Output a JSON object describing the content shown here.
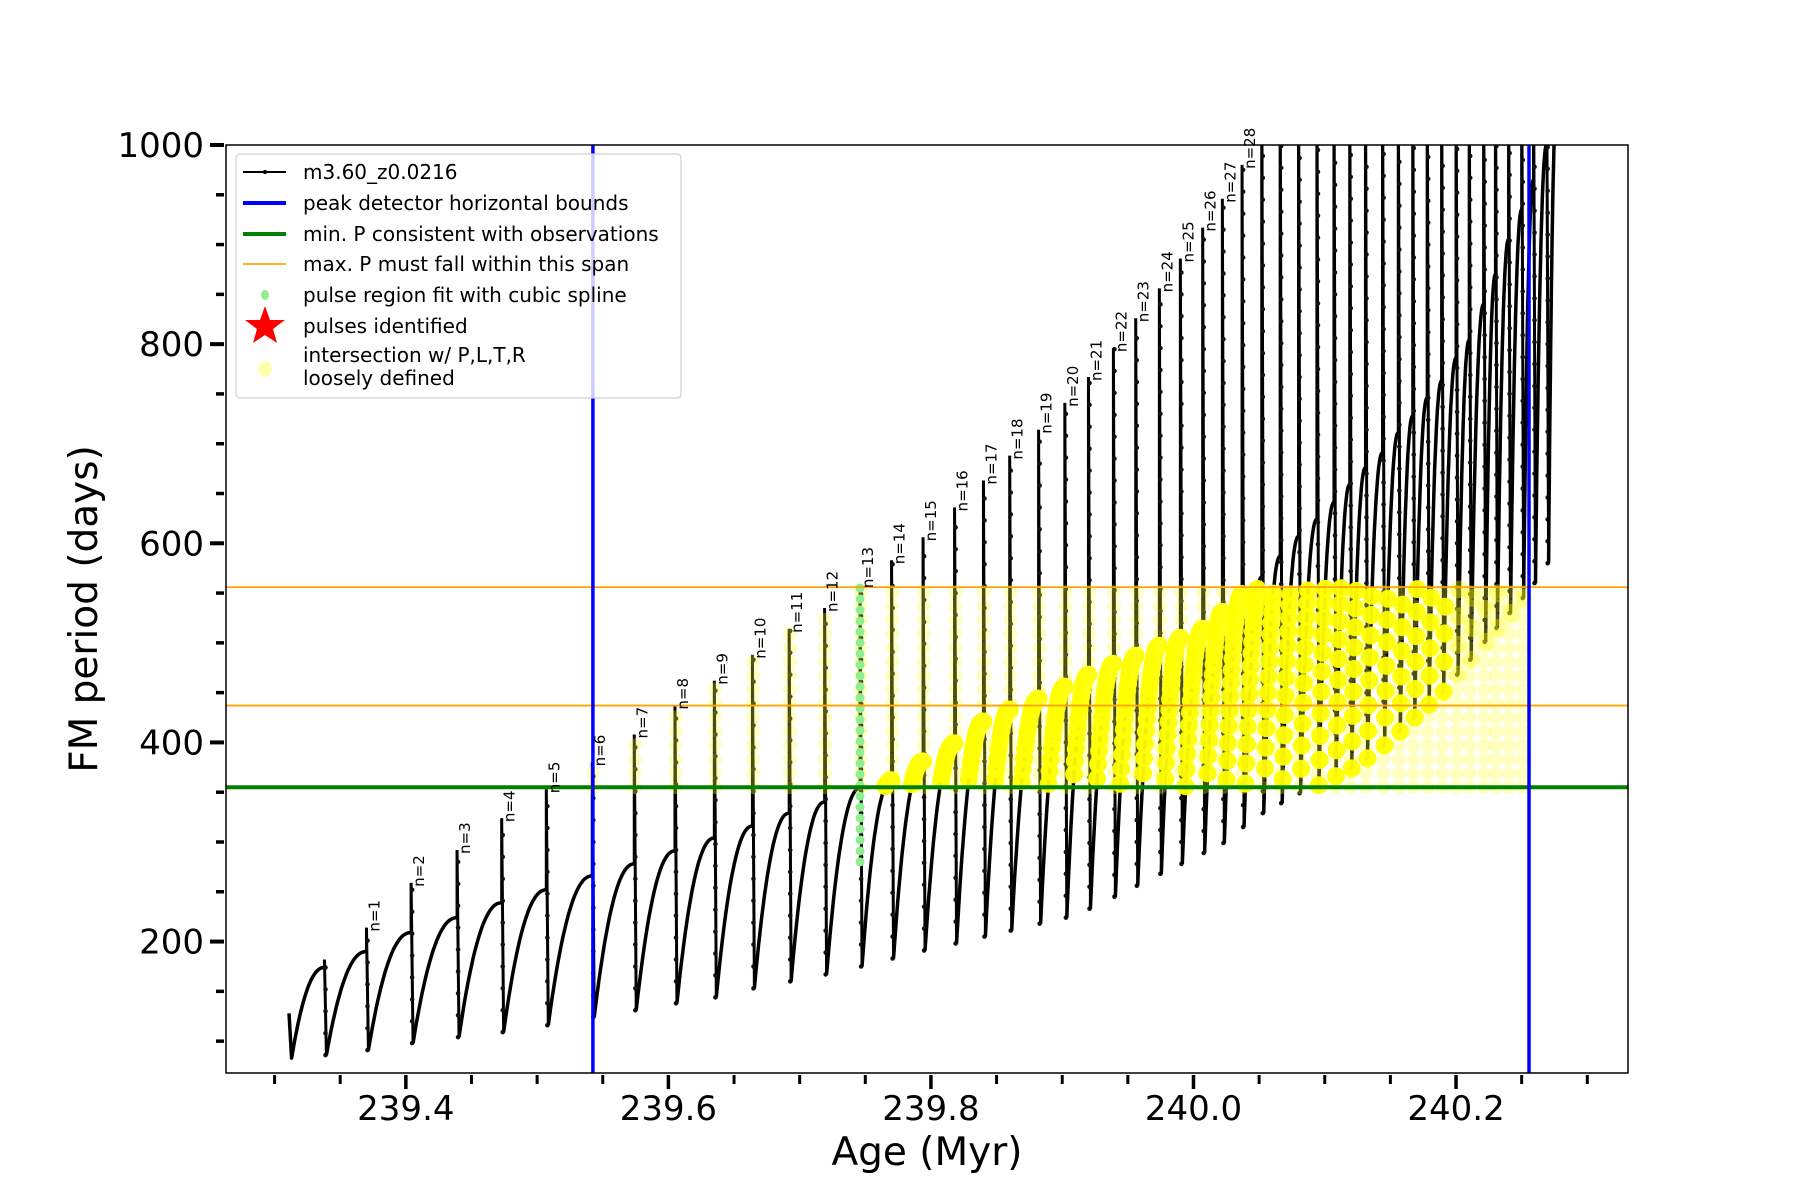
{
  "chart_data": {
    "type": "line",
    "title": "",
    "xlabel": "Age (Myr)",
    "ylabel": "FM period (days)",
    "xlim": [
      239.263,
      240.331
    ],
    "ylim": [
      68,
      1000
    ],
    "grid": false,
    "xticks": [
      239.4,
      239.6,
      239.8,
      240.0,
      240.2
    ],
    "xtick_labels": [
      "239.4",
      "239.6",
      "239.8",
      "240.0",
      "240.2"
    ],
    "xminor_step": 0.05,
    "yticks": [
      200,
      400,
      600,
      800,
      1000
    ],
    "ytick_labels": [
      "200",
      "400",
      "600",
      "800",
      "1000"
    ],
    "yminor_step": 50,
    "series": {
      "name": "m3.60_z0.0216",
      "start": {
        "age": 239.311,
        "period": 128,
        "first_min": 83
      },
      "end": {
        "age": 240.277,
        "period": 1050
      },
      "pulse_age": [
        239.338,
        239.37,
        239.404,
        239.439,
        239.473,
        239.507,
        239.542,
        239.574,
        239.605,
        239.635,
        239.664,
        239.692,
        239.719,
        239.746,
        239.77,
        239.794,
        239.818,
        239.84,
        239.86,
        239.882,
        239.902,
        239.92,
        239.939,
        239.956,
        239.974,
        239.99,
        240.007,
        240.022,
        240.037,
        240.052,
        240.066,
        240.08,
        240.094,
        240.107,
        240.119,
        240.131,
        240.144,
        240.156,
        240.167,
        240.178,
        240.189,
        240.2,
        240.21,
        240.221,
        240.23,
        240.24,
        240.25,
        240.259,
        240.269
      ],
      "pre_spike_max": [
        174,
        190,
        209,
        224,
        239,
        252,
        266,
        278,
        291,
        304,
        316,
        329,
        340,
        354,
        362,
        381,
        399,
        421,
        433,
        444,
        456,
        468,
        479,
        487,
        497,
        505,
        514,
        531,
        549,
        566,
        587,
        607,
        624,
        641,
        659,
        676,
        691,
        711,
        728,
        746,
        763,
        786,
        804,
        840,
        870,
        905,
        935,
        965,
        1000
      ],
      "spike_top": [
        182,
        214,
        259,
        292,
        324,
        353,
        380,
        408,
        437,
        462,
        488,
        514,
        535,
        559,
        583,
        606,
        636,
        663,
        688,
        714,
        741,
        767,
        796,
        826,
        856,
        886,
        917,
        946,
        980,
        1100,
        1100,
        1100,
        1100,
        1100,
        1100,
        1100,
        1100,
        1100,
        1100,
        1100,
        1100,
        1100,
        1100,
        1100,
        1100,
        1100,
        1100,
        1100,
        1100
      ],
      "post_spike_min": [
        86,
        91,
        98,
        104,
        109,
        116,
        124,
        131,
        138,
        144,
        153,
        160,
        167,
        175,
        183,
        191,
        198,
        205,
        211,
        218,
        224,
        233,
        245,
        256,
        268,
        278,
        289,
        299,
        315,
        329,
        339,
        349,
        357,
        366,
        374,
        384,
        397,
        411,
        425,
        438,
        451,
        468,
        483,
        501,
        515,
        530,
        545,
        560,
        580
      ]
    },
    "pulse_labels": [
      "n=1",
      "n=2",
      "n=3",
      "n=4",
      "n=5",
      "n=6",
      "n=7",
      "n=8",
      "n=9",
      "n=10",
      "n=11",
      "n=12",
      "n=13",
      "n=14",
      "n=15",
      "n=16",
      "n=17",
      "n=18",
      "n=19",
      "n=20",
      "n=21",
      "n=22",
      "n=23",
      "n=24",
      "n=25",
      "n=26",
      "n=27",
      "n=28"
    ],
    "peak_detector_bounds": [
      239.5425,
      240.2556
    ],
    "min_period": 355,
    "max_period_span": [
      437,
      556
    ],
    "spline_fit_pulse_index": 13,
    "spline_fit_range": [
      280,
      556
    ],
    "legend": {
      "placement": "upper-left",
      "entries": [
        {
          "label": "m3.60_z0.0216",
          "kind": "line-dot",
          "color": "#000000"
        },
        {
          "label": "peak detector horizontal bounds",
          "kind": "thick-line",
          "color": "#0000ff"
        },
        {
          "label": "min. P consistent with observations",
          "kind": "thick-line",
          "color": "#008000"
        },
        {
          "label": "max. P must fall within this span",
          "kind": "thin-line",
          "color": "#ffa500"
        },
        {
          "label": "pulse region fit with cubic spline",
          "kind": "dot",
          "color": "#90ee90"
        },
        {
          "label": "pulses identified",
          "kind": "star",
          "color": "#ff0000"
        },
        {
          "label": "intersection w/ P,L,T,R",
          "label2": "loosely defined",
          "kind": "circle",
          "color": "#ffffb0"
        }
      ]
    },
    "colors": {
      "curve": "#000000",
      "bounds": "#0000ff",
      "min_p": "#008000",
      "max_p": "#ffa500",
      "spline": "#90ee90",
      "intersection": "#ffff00"
    }
  }
}
